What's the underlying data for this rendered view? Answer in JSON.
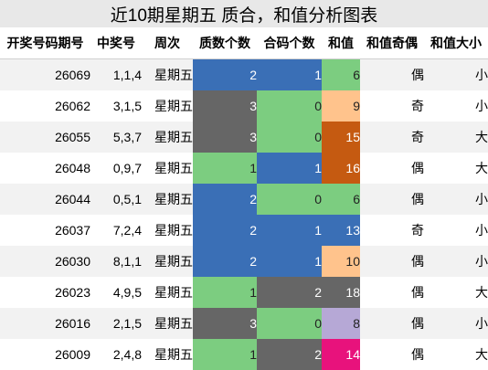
{
  "title": "近10期星期五 质合，和值分析图表",
  "colors": {
    "blue": "#3a6fb6",
    "green": "#7ccd80",
    "gray": "#666666",
    "orange_light": "#ffc38c",
    "orange_dark": "#c55a11",
    "purple_light": "#b6a8d6",
    "pink": "#e8127c",
    "stripe": "#f2f2f2"
  },
  "headers": [
    "开奖号码期号",
    "中奖号",
    "周次",
    "质数个数",
    "合码个数",
    "和值",
    "和值奇偶",
    "和值大小"
  ],
  "rows": [
    {
      "issue": "26069",
      "numbers": "1,1,4",
      "weekday": "星期五",
      "prime_count": "2",
      "prime_color": "blue",
      "composite_count": "1",
      "composite_color": "blue",
      "sum": "6",
      "sum_color": "green",
      "parity": "偶",
      "size": "小"
    },
    {
      "issue": "26062",
      "numbers": "3,1,5",
      "weekday": "星期五",
      "prime_count": "3",
      "prime_color": "gray",
      "composite_count": "0",
      "composite_color": "green",
      "sum": "9",
      "sum_color": "orange_light",
      "parity": "奇",
      "size": "小"
    },
    {
      "issue": "26055",
      "numbers": "5,3,7",
      "weekday": "星期五",
      "prime_count": "3",
      "prime_color": "gray",
      "composite_count": "0",
      "composite_color": "green",
      "sum": "15",
      "sum_color": "orange_dark",
      "parity": "奇",
      "size": "大"
    },
    {
      "issue": "26048",
      "numbers": "0,9,7",
      "weekday": "星期五",
      "prime_count": "1",
      "prime_color": "green",
      "composite_count": "1",
      "composite_color": "blue",
      "sum": "16",
      "sum_color": "orange_dark",
      "parity": "偶",
      "size": "大"
    },
    {
      "issue": "26044",
      "numbers": "0,5,1",
      "weekday": "星期五",
      "prime_count": "2",
      "prime_color": "blue",
      "composite_count": "0",
      "composite_color": "green",
      "sum": "6",
      "sum_color": "green",
      "parity": "偶",
      "size": "小"
    },
    {
      "issue": "26037",
      "numbers": "7,2,4",
      "weekday": "星期五",
      "prime_count": "2",
      "prime_color": "blue",
      "composite_count": "1",
      "composite_color": "blue",
      "sum": "13",
      "sum_color": "blue",
      "parity": "奇",
      "size": "小"
    },
    {
      "issue": "26030",
      "numbers": "8,1,1",
      "weekday": "星期五",
      "prime_count": "2",
      "prime_color": "blue",
      "composite_count": "1",
      "composite_color": "blue",
      "sum": "10",
      "sum_color": "orange_light",
      "parity": "偶",
      "size": "小"
    },
    {
      "issue": "26023",
      "numbers": "4,9,5",
      "weekday": "星期五",
      "prime_count": "1",
      "prime_color": "green",
      "composite_count": "2",
      "composite_color": "gray",
      "sum": "18",
      "sum_color": "gray",
      "parity": "偶",
      "size": "大"
    },
    {
      "issue": "26016",
      "numbers": "2,1,5",
      "weekday": "星期五",
      "prime_count": "3",
      "prime_color": "gray",
      "composite_count": "0",
      "composite_color": "green",
      "sum": "8",
      "sum_color": "purple_light",
      "parity": "偶",
      "size": "小"
    },
    {
      "issue": "26009",
      "numbers": "2,4,8",
      "weekday": "星期五",
      "prime_count": "1",
      "prime_color": "green",
      "composite_count": "2",
      "composite_color": "gray",
      "sum": "14",
      "sum_color": "pink",
      "parity": "偶",
      "size": "大"
    }
  ]
}
